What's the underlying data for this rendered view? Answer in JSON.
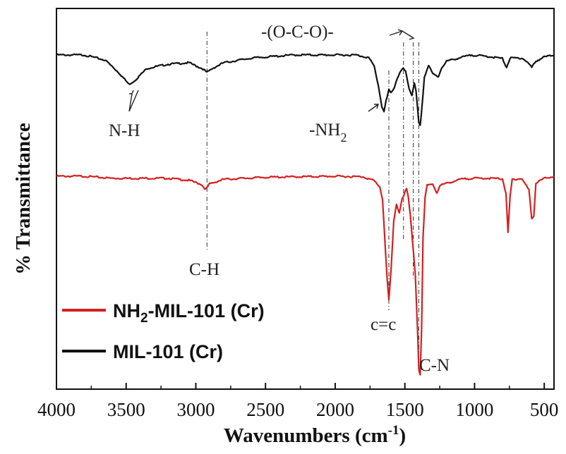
{
  "chart_data": {
    "type": "line",
    "title": "",
    "xlabel": "Wavenumbers (cm",
    "xlabel_sup": "-1",
    "xlabel_close": ")",
    "ylabel": "% Transmittance",
    "xlim": [
      4000,
      430
    ],
    "x_ticks": [
      4000,
      3500,
      3000,
      2500,
      2000,
      1500,
      1000,
      500
    ],
    "y_ticks_shown": false,
    "legend_position": "bottom-left",
    "series": [
      {
        "name": "MIL-101 (Cr)",
        "color": "#111111",
        "baseline": 100,
        "points": [
          [
            4000,
            100
          ],
          [
            3800,
            100
          ],
          [
            3650,
            99
          ],
          [
            3550,
            96.5
          ],
          [
            3480,
            94.3
          ],
          [
            3440,
            95
          ],
          [
            3350,
            97.4
          ],
          [
            3200,
            98.2
          ],
          [
            3050,
            98.5
          ],
          [
            2950,
            97.3
          ],
          [
            2920,
            96.6
          ],
          [
            2880,
            97.4
          ],
          [
            2800,
            98.5
          ],
          [
            2600,
            99.4
          ],
          [
            2300,
            100
          ],
          [
            2000,
            100
          ],
          [
            1850,
            100
          ],
          [
            1760,
            99.5
          ],
          [
            1720,
            97.8
          ],
          [
            1690,
            94
          ],
          [
            1665,
            90
          ],
          [
            1650,
            89
          ],
          [
            1635,
            91
          ],
          [
            1615,
            93.2
          ],
          [
            1600,
            92.6
          ],
          [
            1575,
            93.8
          ],
          [
            1555,
            95.5
          ],
          [
            1530,
            96.8
          ],
          [
            1510,
            97.4
          ],
          [
            1495,
            96.7
          ],
          [
            1470,
            93.5
          ],
          [
            1450,
            92.2
          ],
          [
            1432,
            94.6
          ],
          [
            1420,
            92.9
          ],
          [
            1400,
            86.8
          ],
          [
            1390,
            86.2
          ],
          [
            1378,
            89.8
          ],
          [
            1360,
            95.7
          ],
          [
            1330,
            98
          ],
          [
            1300,
            96.3
          ],
          [
            1260,
            95.8
          ],
          [
            1235,
            97.6
          ],
          [
            1200,
            98.8
          ],
          [
            1100,
            99.5
          ],
          [
            1020,
            100
          ],
          [
            900,
            99.7
          ],
          [
            800,
            99.3
          ],
          [
            770,
            97.6
          ],
          [
            745,
            99.4
          ],
          [
            660,
            99.4
          ],
          [
            620,
            98.6
          ],
          [
            590,
            97.6
          ],
          [
            560,
            98.8
          ],
          [
            500,
            99.6
          ],
          [
            430,
            100
          ]
        ]
      },
      {
        "name": "NH2-MIL-101 (Cr)",
        "legend_main": "NH",
        "legend_sub": "2",
        "legend_rest": "-MIL-101 (Cr)",
        "color": "#d42020",
        "baseline": 100,
        "points": [
          [
            4000,
            100
          ],
          [
            3800,
            100
          ],
          [
            3600,
            99.6
          ],
          [
            3400,
            99.6
          ],
          [
            3200,
            99.6
          ],
          [
            3050,
            99.2
          ],
          [
            2960,
            98.4
          ],
          [
            2930,
            97.4
          ],
          [
            2900,
            98.5
          ],
          [
            2800,
            99.4
          ],
          [
            2500,
            99.8
          ],
          [
            2000,
            100
          ],
          [
            1800,
            99.9
          ],
          [
            1720,
            99.1
          ],
          [
            1680,
            97.9
          ],
          [
            1660,
            95.4
          ],
          [
            1645,
            88
          ],
          [
            1628,
            80
          ],
          [
            1615,
            75.6
          ],
          [
            1600,
            81
          ],
          [
            1580,
            91.3
          ],
          [
            1560,
            94.5
          ],
          [
            1540,
            92.7
          ],
          [
            1520,
            95.4
          ],
          [
            1500,
            96.7
          ],
          [
            1488,
            97.6
          ],
          [
            1475,
            95.9
          ],
          [
            1460,
            92.2
          ],
          [
            1440,
            85.5
          ],
          [
            1425,
            80.3
          ],
          [
            1410,
            70
          ],
          [
            1400,
            61.9
          ],
          [
            1390,
            60.9
          ],
          [
            1380,
            70
          ],
          [
            1370,
            87.9
          ],
          [
            1355,
            95.9
          ],
          [
            1340,
            98.2
          ],
          [
            1300,
            98.4
          ],
          [
            1270,
            96.7
          ],
          [
            1250,
            98.2
          ],
          [
            1100,
            99.4
          ],
          [
            1020,
            99.6
          ],
          [
            900,
            99.6
          ],
          [
            800,
            99.5
          ],
          [
            775,
            96.7
          ],
          [
            760,
            88.8
          ],
          [
            745,
            96
          ],
          [
            730,
            99.4
          ],
          [
            660,
            99.5
          ],
          [
            610,
            97.3
          ],
          [
            590,
            91.7
          ],
          [
            575,
            92.2
          ],
          [
            560,
            98.6
          ],
          [
            500,
            99.6
          ],
          [
            430,
            100
          ]
        ]
      }
    ],
    "annotations": [
      {
        "id": "nh",
        "text": "N-H"
      },
      {
        "id": "ch",
        "text": "C-H"
      },
      {
        "id": "nh2",
        "text": "-NH",
        "sub": "2"
      },
      {
        "id": "oco",
        "text": "-(O-C-O)-"
      },
      {
        "id": "cc",
        "text": "c=c"
      },
      {
        "id": "cn",
        "text": "C-N"
      }
    ]
  }
}
